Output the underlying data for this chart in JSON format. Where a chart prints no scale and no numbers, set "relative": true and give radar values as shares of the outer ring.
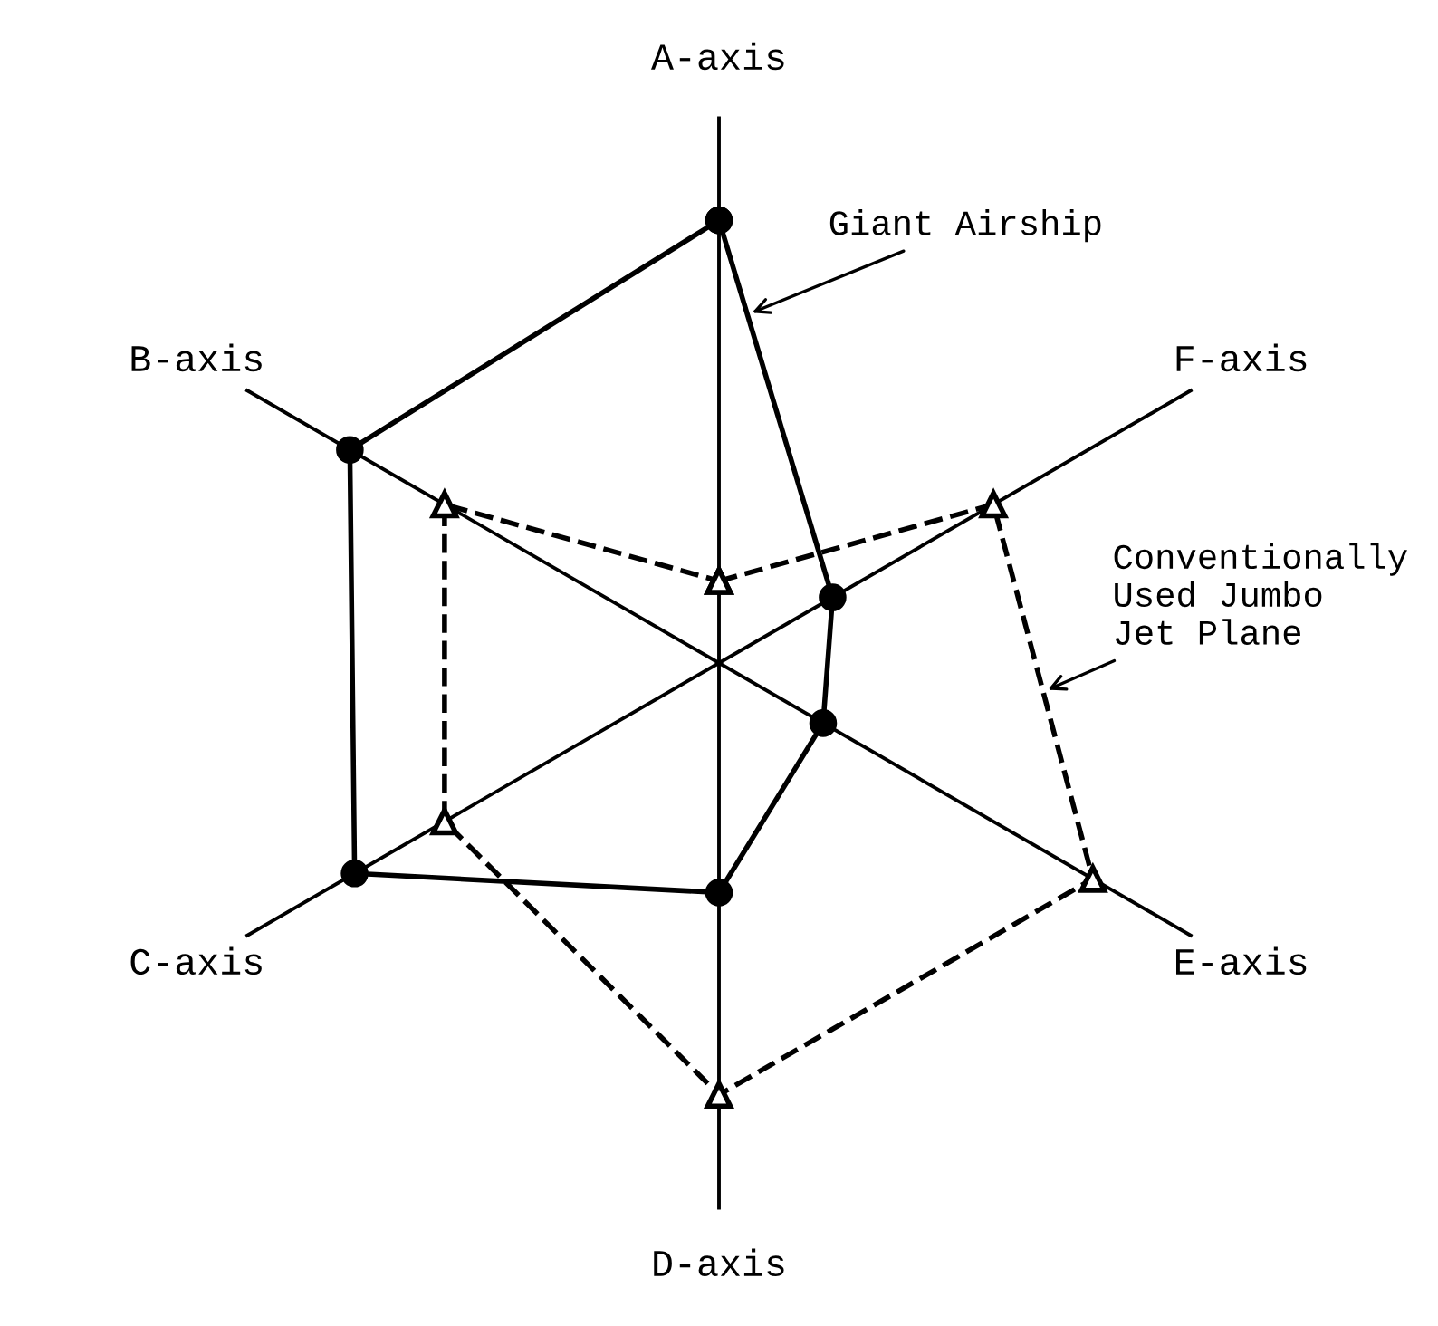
{
  "chart_data": {
    "type": "radar",
    "categories": [
      "A-axis",
      "F-axis",
      "E-axis",
      "D-axis",
      "C-axis",
      "B-axis"
    ],
    "relative": true,
    "grid": "x",
    "series": [
      {
        "name": "Giant Airship",
        "color": "#000000",
        "marker": "circle",
        "line_style": "solid",
        "values": [
          0.81,
          0.24,
          0.22,
          0.42,
          0.77,
          0.78
        ]
      },
      {
        "name": "Conventionally\nUsed Jumbo\nJet Plane",
        "color": "#000000",
        "marker": "triangle",
        "line_style": "dashed",
        "values": [
          0.15,
          0.58,
          0.79,
          0.79,
          0.58,
          0.58
        ]
      }
    ]
  }
}
